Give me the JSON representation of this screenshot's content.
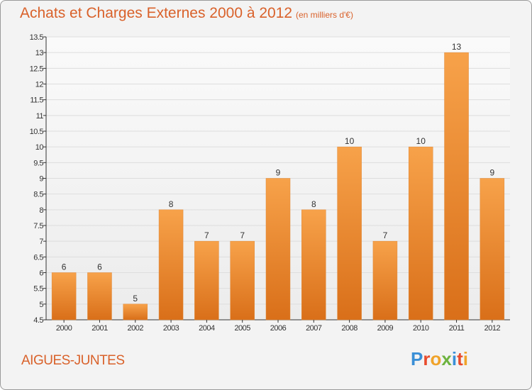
{
  "header": {
    "title": "Achats et Charges Externes 2000 à 2012",
    "subtitle": "(en milliers d'€)"
  },
  "commune": "AIGUES-JUNTES",
  "logo": {
    "text": "Proxiti",
    "letters": [
      {
        "char": "P",
        "color": "#3a8fd6"
      },
      {
        "char": "r",
        "color": "#e84b2c"
      },
      {
        "char": "o",
        "color": "#f0a32a"
      },
      {
        "char": "x",
        "color": "#6db33f"
      },
      {
        "char": "i",
        "color": "#3a8fd6"
      },
      {
        "char": "t",
        "color": "#e84b2c"
      },
      {
        "char": "i",
        "color": "#f0a32a"
      }
    ]
  },
  "colors": {
    "bar_top": "#f7a24a",
    "bar_bottom": "#d96f19",
    "text_accent": "#d9612a",
    "axis": "#333333",
    "grid": "#dddddd"
  },
  "chart_data": {
    "type": "bar",
    "categories": [
      "2000",
      "2001",
      "2002",
      "2003",
      "2004",
      "2005",
      "2006",
      "2007",
      "2008",
      "2009",
      "2010",
      "2011",
      "2012"
    ],
    "values": [
      6,
      6,
      5,
      8,
      7,
      7,
      9,
      8,
      10,
      7,
      10,
      13,
      9
    ],
    "value_labels": [
      "6",
      "6",
      "5",
      "8",
      "7",
      "7",
      "9",
      "8",
      "10",
      "7",
      "10",
      "13",
      "9"
    ],
    "ylim": [
      4.5,
      13.5
    ],
    "yticks": [
      4.5,
      5,
      5.5,
      6,
      6.5,
      7,
      7.5,
      8,
      8.5,
      9,
      9.5,
      10,
      10.5,
      11,
      11.5,
      12,
      12.5,
      13,
      13.5
    ],
    "ytick_labels": [
      "4.5",
      "5",
      "5.5",
      "6",
      "6.5",
      "7",
      "7.5",
      "8",
      "8.5",
      "9",
      "9.5",
      "10",
      "10.5",
      "11",
      "11.5",
      "12",
      "12.5",
      "13",
      "13.5"
    ],
    "grid": true
  }
}
